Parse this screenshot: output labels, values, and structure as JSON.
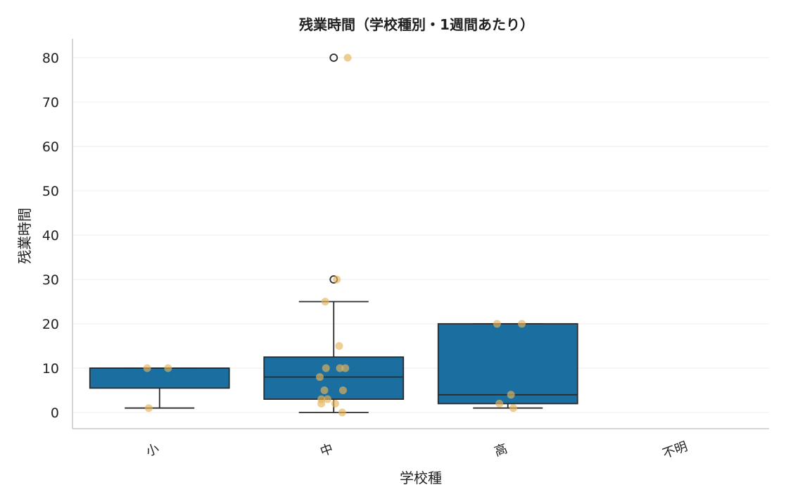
{
  "chart_data": {
    "type": "box",
    "title": "残業時間（学校種別・1週間あたり）",
    "xlabel": "学校種",
    "ylabel": "残業時間",
    "categories": [
      "小",
      "中",
      "高",
      "不明"
    ],
    "ylim": [
      -4,
      84
    ],
    "yticks": [
      0,
      10,
      20,
      30,
      40,
      50,
      60,
      70,
      80
    ],
    "grid": "horizontal",
    "colors": {
      "box": "#1a6fa0",
      "edge": "#2b2b2b",
      "points": "#e6b35a",
      "grid": "#ececec",
      "spine": "#c8c8c8"
    },
    "boxes": [
      {
        "category": "小",
        "q1": 5.5,
        "median": 10,
        "q3": 10,
        "whisker_low": 1,
        "whisker_high": 10,
        "outliers": []
      },
      {
        "category": "中",
        "q1": 3,
        "median": 8,
        "q3": 12.5,
        "whisker_low": 0,
        "whisker_high": 25,
        "outliers": [
          30,
          80
        ]
      },
      {
        "category": "高",
        "q1": 2,
        "median": 4,
        "q3": 20,
        "whisker_low": 1,
        "whisker_high": 20,
        "outliers": []
      }
    ],
    "points": [
      {
        "category": "小",
        "values": [
          10,
          10,
          1
        ]
      },
      {
        "category": "中",
        "values": [
          80,
          30,
          25,
          15,
          10,
          10,
          10,
          8,
          5,
          5,
          3,
          3,
          2,
          2,
          0
        ]
      },
      {
        "category": "高",
        "values": [
          20,
          20,
          4,
          2,
          1
        ]
      }
    ]
  }
}
